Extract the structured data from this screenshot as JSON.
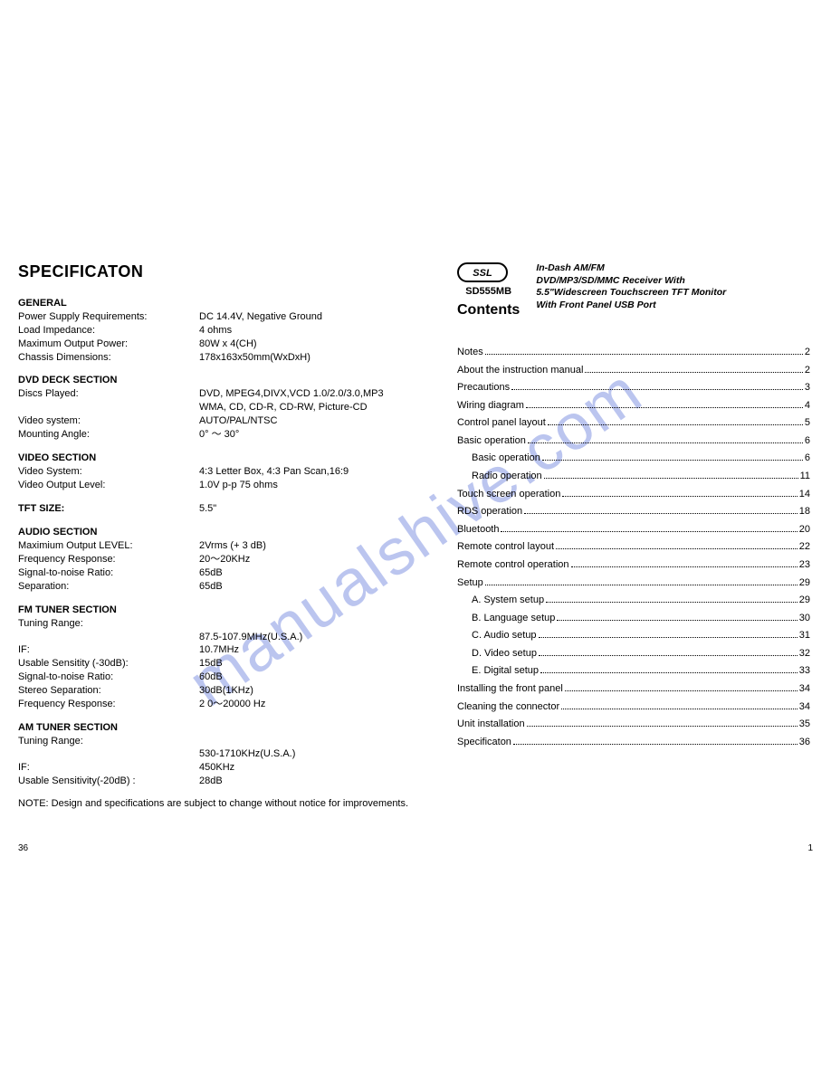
{
  "watermark": "manualshive.com",
  "left": {
    "title": "SPECIFICATON",
    "sections": [
      {
        "head": "GENERAL",
        "rows": [
          {
            "label": "Power Supply Requirements:",
            "value": "DC 14.4V, Negative Ground"
          },
          {
            "label": "Load Impedance:",
            "value": "4 ohms"
          },
          {
            "label": "Maximum Output Power:",
            "value": "80W  x  4(CH)"
          },
          {
            "label": "Chassis Dimensions:",
            "value": "178x163x50mm(WxDxH)"
          }
        ]
      },
      {
        "head": "DVD DECK SECTION",
        "rows": [
          {
            "label": "Discs Played:",
            "value": "DVD, MPEG4,DIVX,VCD 1.0/2.0/3.0,MP3"
          },
          {
            "label": "",
            "value": "WMA, CD, CD-R, CD-RW, Picture-CD"
          },
          {
            "label": " Video system:",
            "value": "AUTO/PAL/NTSC"
          },
          {
            "label": " Mounting Angle:",
            "value": "0°  ～ 30°"
          }
        ]
      },
      {
        "head": "VIDEO SECTION",
        "rows": [
          {
            "label": "Video  System:",
            "value": "4:3 Letter Box, 4:3 Pan Scan,16:9"
          },
          {
            "label": "Video  Output  Level:",
            "value": "1.0V p-p 75 ohms"
          }
        ]
      },
      {
        "head": "TFT SIZE:",
        "rows": [
          {
            "label": "",
            "value": "5.5\""
          }
        ],
        "inline": true
      },
      {
        "head": "AUDIO SECTION",
        "rows": [
          {
            "label": "Maximium Output LEVEL:",
            "value": "2Vrms (+ 3 dB)"
          },
          {
            "label": "Frequency Response:",
            "value": "20～20KHz"
          },
          {
            "label": "Signal-to-noise Ratio:",
            "value": "65dB"
          },
          {
            "label": "Separation:",
            "value": "65dB"
          }
        ]
      },
      {
        "head": "FM TUNER SECTION",
        "rows": [
          {
            "label": "Tuning Range:",
            "value": ""
          },
          {
            "label": "",
            "value": "87.5-107.9MHz(U.S.A.)"
          },
          {
            "label": "IF:",
            "value": "10.7MHz"
          },
          {
            "label": "Usable Sensitity (-30dB):",
            "value": "15dB"
          },
          {
            "label": "Signal-to-noise Ratio:",
            "value": "60dB"
          },
          {
            "label": "Stereo Separation:",
            "value": "30dB(1KHz)"
          },
          {
            "label": "Frequency Response:",
            "value": "2 0～20000 Hz"
          }
        ]
      },
      {
        "head": "AM TUNER SECTION",
        "rows": [
          {
            "label": "Tuning Range:",
            "value": ""
          },
          {
            "label": "",
            "value": "530-1710KHz(U.S.A.)"
          },
          {
            "label": "IF:",
            "value": "450KHz"
          },
          {
            "label": "Usable Sensitivity(-20dB) :",
            "value": "28dB"
          }
        ]
      }
    ],
    "note": "NOTE: Design and specifications are subject to change without notice for improvements.",
    "pageNumber": "36"
  },
  "right": {
    "model": "SD555MB",
    "desc1": "In-Dash AM/FM",
    "desc2": "DVD/MP3/SD/MMC Receiver With",
    "desc3": "5.5\"Widescreen Touchscreen TFT Monitor",
    "desc4": "With Front Panel USB Port",
    "contentsTitle": "Contents",
    "toc": [
      {
        "label": "Notes",
        "page": "2",
        "indent": 0
      },
      {
        "label": "About the instruction manual",
        "page": "2",
        "indent": 0
      },
      {
        "label": "Precautions",
        "page": "3",
        "indent": 0
      },
      {
        "label": "Wiring  diagram",
        "page": "4",
        "indent": 0
      },
      {
        "label": "Control panel layout",
        "page": "5",
        "indent": 0
      },
      {
        "label": "Basic operation",
        "page": "6",
        "indent": 0
      },
      {
        "label": "Basic operation",
        "page": "6",
        "indent": 1
      },
      {
        "label": "Radio operation",
        "page": "11",
        "indent": 1
      },
      {
        "label": "Touch  screen  operation",
        "page": "14",
        "indent": 0
      },
      {
        "label": "RDS  operation",
        "page": "18",
        "indent": 0
      },
      {
        "label": "Bluetooth",
        "page": "20",
        "indent": 0
      },
      {
        "label": "Remote control layout",
        "page": "22",
        "indent": 0
      },
      {
        "label": "Remote control operation",
        "page": "23",
        "indent": 0
      },
      {
        "label": "Setup",
        "page": "29",
        "indent": 0
      },
      {
        "label": "A. System setup",
        "page": "29",
        "indent": 2
      },
      {
        "label": "B. Language setup",
        "page": "30",
        "indent": 2
      },
      {
        "label": "C. Audio setup",
        "page": "31",
        "indent": 2
      },
      {
        "label": "D. Video  setup",
        "page": "32",
        "indent": 2
      },
      {
        "label": "E. Digital setup",
        "page": "33",
        "indent": 2
      },
      {
        "label": "Installing the front panel",
        "page": "34",
        "indent": 0
      },
      {
        "label": "Cleaning the connector",
        "page": "34",
        "indent": 0
      },
      {
        "label": "Unit installation",
        "page": "35",
        "indent": 0
      },
      {
        "label": "Specificaton",
        "page": "36",
        "indent": 0
      }
    ],
    "pageNumber": "1"
  }
}
